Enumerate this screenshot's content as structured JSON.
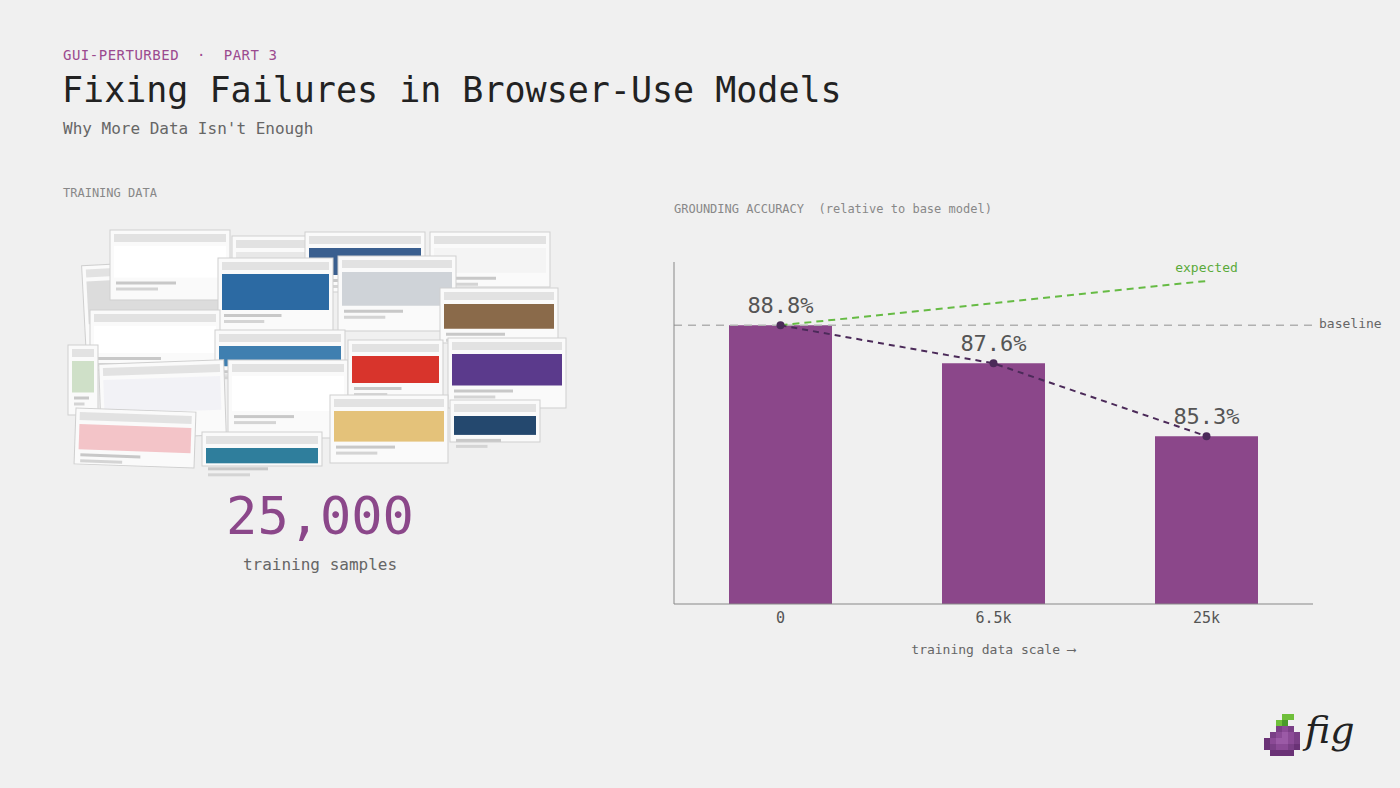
{
  "header": {
    "tag": "GUI-PERTURBED",
    "separator": "·",
    "part": "PART 3",
    "title": "Fixing Failures in Browser-Use Models",
    "subtitle": "Why More Data Isn't Enough"
  },
  "training_data": {
    "label": "TRAINING DATA",
    "count": "25,000",
    "caption": "training samples"
  },
  "chart_data": {
    "type": "bar",
    "title": "GROUNDING ACCURACY  (relative to base model)",
    "x_label": "training data scale ⟶",
    "categories": [
      "0",
      "6.5k",
      "25k"
    ],
    "values": [
      88.8,
      87.6,
      85.3
    ],
    "value_labels": [
      "88.8%",
      "87.6%",
      "85.3%"
    ],
    "data_labels": true,
    "color": "#8b478a",
    "ylim": [
      80,
      90.8
    ],
    "yticks": [],
    "tick_labels": "x",
    "grid": false,
    "baseline": {
      "label": "baseline",
      "value": 88.8
    },
    "expected": {
      "label": "expected",
      "values": [
        88.8,
        89.5,
        90.2
      ],
      "color": "#66bb44"
    }
  },
  "logo": "fig"
}
